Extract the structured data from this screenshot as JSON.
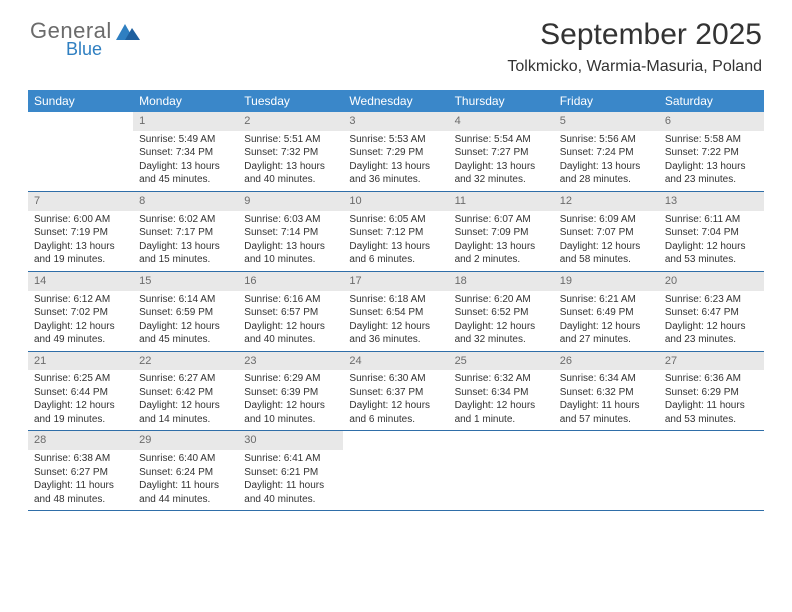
{
  "logo": {
    "text_top": "General",
    "text_bottom": "Blue",
    "top_color": "#6b6b6b",
    "bottom_color": "#2f7fc1",
    "icon_color": "#2f7fc1"
  },
  "header": {
    "title": "September 2025",
    "location": "Tolkmicko, Warmia-Masuria, Poland"
  },
  "colors": {
    "header_bg": "#3a87c9",
    "header_text": "#ffffff",
    "daynum_bg": "#e8e8e8",
    "daynum_text": "#6b6b6b",
    "rule": "#2f6ea8",
    "body_text": "#333333",
    "page_bg": "#ffffff"
  },
  "typography": {
    "title_fontsize": 30,
    "location_fontsize": 16,
    "weekday_fontsize": 12,
    "daynum_fontsize": 11,
    "body_fontsize": 10
  },
  "weekdays": [
    "Sunday",
    "Monday",
    "Tuesday",
    "Wednesday",
    "Thursday",
    "Friday",
    "Saturday"
  ],
  "weeks": [
    [
      null,
      {
        "num": "1",
        "sunrise": "Sunrise: 5:49 AM",
        "sunset": "Sunset: 7:34 PM",
        "daylight": "Daylight: 13 hours and 45 minutes."
      },
      {
        "num": "2",
        "sunrise": "Sunrise: 5:51 AM",
        "sunset": "Sunset: 7:32 PM",
        "daylight": "Daylight: 13 hours and 40 minutes."
      },
      {
        "num": "3",
        "sunrise": "Sunrise: 5:53 AM",
        "sunset": "Sunset: 7:29 PM",
        "daylight": "Daylight: 13 hours and 36 minutes."
      },
      {
        "num": "4",
        "sunrise": "Sunrise: 5:54 AM",
        "sunset": "Sunset: 7:27 PM",
        "daylight": "Daylight: 13 hours and 32 minutes."
      },
      {
        "num": "5",
        "sunrise": "Sunrise: 5:56 AM",
        "sunset": "Sunset: 7:24 PM",
        "daylight": "Daylight: 13 hours and 28 minutes."
      },
      {
        "num": "6",
        "sunrise": "Sunrise: 5:58 AM",
        "sunset": "Sunset: 7:22 PM",
        "daylight": "Daylight: 13 hours and 23 minutes."
      }
    ],
    [
      {
        "num": "7",
        "sunrise": "Sunrise: 6:00 AM",
        "sunset": "Sunset: 7:19 PM",
        "daylight": "Daylight: 13 hours and 19 minutes."
      },
      {
        "num": "8",
        "sunrise": "Sunrise: 6:02 AM",
        "sunset": "Sunset: 7:17 PM",
        "daylight": "Daylight: 13 hours and 15 minutes."
      },
      {
        "num": "9",
        "sunrise": "Sunrise: 6:03 AM",
        "sunset": "Sunset: 7:14 PM",
        "daylight": "Daylight: 13 hours and 10 minutes."
      },
      {
        "num": "10",
        "sunrise": "Sunrise: 6:05 AM",
        "sunset": "Sunset: 7:12 PM",
        "daylight": "Daylight: 13 hours and 6 minutes."
      },
      {
        "num": "11",
        "sunrise": "Sunrise: 6:07 AM",
        "sunset": "Sunset: 7:09 PM",
        "daylight": "Daylight: 13 hours and 2 minutes."
      },
      {
        "num": "12",
        "sunrise": "Sunrise: 6:09 AM",
        "sunset": "Sunset: 7:07 PM",
        "daylight": "Daylight: 12 hours and 58 minutes."
      },
      {
        "num": "13",
        "sunrise": "Sunrise: 6:11 AM",
        "sunset": "Sunset: 7:04 PM",
        "daylight": "Daylight: 12 hours and 53 minutes."
      }
    ],
    [
      {
        "num": "14",
        "sunrise": "Sunrise: 6:12 AM",
        "sunset": "Sunset: 7:02 PM",
        "daylight": "Daylight: 12 hours and 49 minutes."
      },
      {
        "num": "15",
        "sunrise": "Sunrise: 6:14 AM",
        "sunset": "Sunset: 6:59 PM",
        "daylight": "Daylight: 12 hours and 45 minutes."
      },
      {
        "num": "16",
        "sunrise": "Sunrise: 6:16 AM",
        "sunset": "Sunset: 6:57 PM",
        "daylight": "Daylight: 12 hours and 40 minutes."
      },
      {
        "num": "17",
        "sunrise": "Sunrise: 6:18 AM",
        "sunset": "Sunset: 6:54 PM",
        "daylight": "Daylight: 12 hours and 36 minutes."
      },
      {
        "num": "18",
        "sunrise": "Sunrise: 6:20 AM",
        "sunset": "Sunset: 6:52 PM",
        "daylight": "Daylight: 12 hours and 32 minutes."
      },
      {
        "num": "19",
        "sunrise": "Sunrise: 6:21 AM",
        "sunset": "Sunset: 6:49 PM",
        "daylight": "Daylight: 12 hours and 27 minutes."
      },
      {
        "num": "20",
        "sunrise": "Sunrise: 6:23 AM",
        "sunset": "Sunset: 6:47 PM",
        "daylight": "Daylight: 12 hours and 23 minutes."
      }
    ],
    [
      {
        "num": "21",
        "sunrise": "Sunrise: 6:25 AM",
        "sunset": "Sunset: 6:44 PM",
        "daylight": "Daylight: 12 hours and 19 minutes."
      },
      {
        "num": "22",
        "sunrise": "Sunrise: 6:27 AM",
        "sunset": "Sunset: 6:42 PM",
        "daylight": "Daylight: 12 hours and 14 minutes."
      },
      {
        "num": "23",
        "sunrise": "Sunrise: 6:29 AM",
        "sunset": "Sunset: 6:39 PM",
        "daylight": "Daylight: 12 hours and 10 minutes."
      },
      {
        "num": "24",
        "sunrise": "Sunrise: 6:30 AM",
        "sunset": "Sunset: 6:37 PM",
        "daylight": "Daylight: 12 hours and 6 minutes."
      },
      {
        "num": "25",
        "sunrise": "Sunrise: 6:32 AM",
        "sunset": "Sunset: 6:34 PM",
        "daylight": "Daylight: 12 hours and 1 minute."
      },
      {
        "num": "26",
        "sunrise": "Sunrise: 6:34 AM",
        "sunset": "Sunset: 6:32 PM",
        "daylight": "Daylight: 11 hours and 57 minutes."
      },
      {
        "num": "27",
        "sunrise": "Sunrise: 6:36 AM",
        "sunset": "Sunset: 6:29 PM",
        "daylight": "Daylight: 11 hours and 53 minutes."
      }
    ],
    [
      {
        "num": "28",
        "sunrise": "Sunrise: 6:38 AM",
        "sunset": "Sunset: 6:27 PM",
        "daylight": "Daylight: 11 hours and 48 minutes."
      },
      {
        "num": "29",
        "sunrise": "Sunrise: 6:40 AM",
        "sunset": "Sunset: 6:24 PM",
        "daylight": "Daylight: 11 hours and 44 minutes."
      },
      {
        "num": "30",
        "sunrise": "Sunrise: 6:41 AM",
        "sunset": "Sunset: 6:21 PM",
        "daylight": "Daylight: 11 hours and 40 minutes."
      },
      null,
      null,
      null,
      null
    ]
  ]
}
